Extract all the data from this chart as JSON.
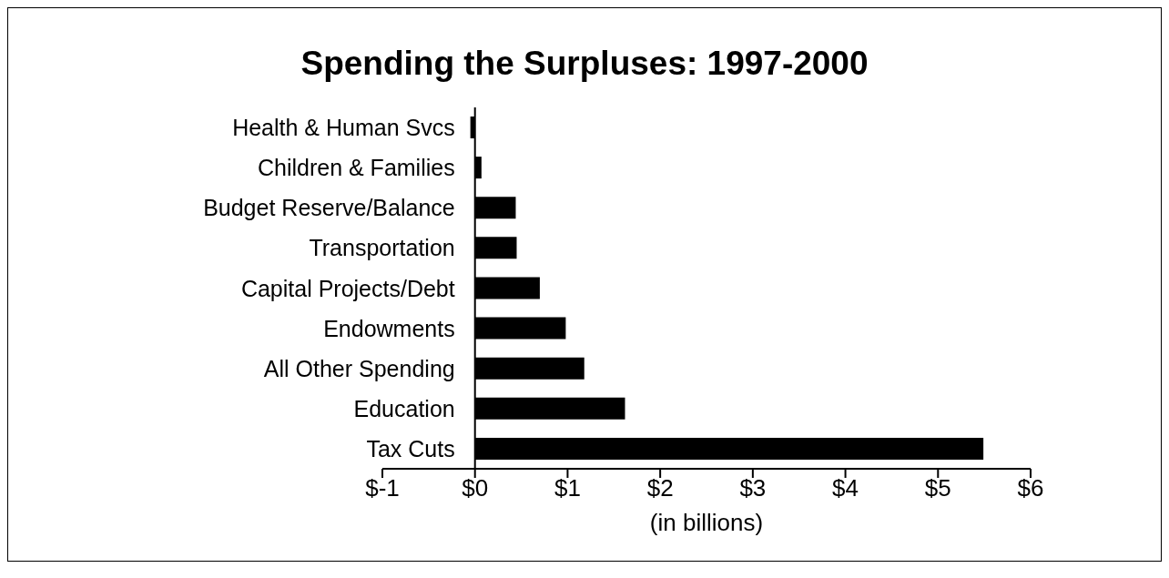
{
  "chart_data": {
    "type": "bar",
    "orientation": "horizontal",
    "title": "Spending the Surpluses:  1997-2000",
    "xlabel": "(in billions)",
    "categories": [
      "Health & Human Svcs",
      "Children & Families",
      "Budget Reserve/Balance",
      "Transportation",
      "Capital Projects/Debt",
      "Endowments",
      "All Other Spending",
      "Education",
      "Tax Cuts"
    ],
    "values": [
      -0.05,
      0.07,
      0.44,
      0.45,
      0.7,
      0.98,
      1.18,
      1.62,
      5.49
    ],
    "color": "#000000",
    "xlim": [
      -1,
      6
    ],
    "xticks": [
      {
        "value": -1,
        "label": "$-1"
      },
      {
        "value": 0,
        "label": "$0"
      },
      {
        "value": 1,
        "label": "$1"
      },
      {
        "value": 2,
        "label": "$2"
      },
      {
        "value": 3,
        "label": "$3"
      },
      {
        "value": 4,
        "label": "$4"
      },
      {
        "value": 5,
        "label": "$5"
      },
      {
        "value": 6,
        "label": "$6"
      }
    ]
  }
}
